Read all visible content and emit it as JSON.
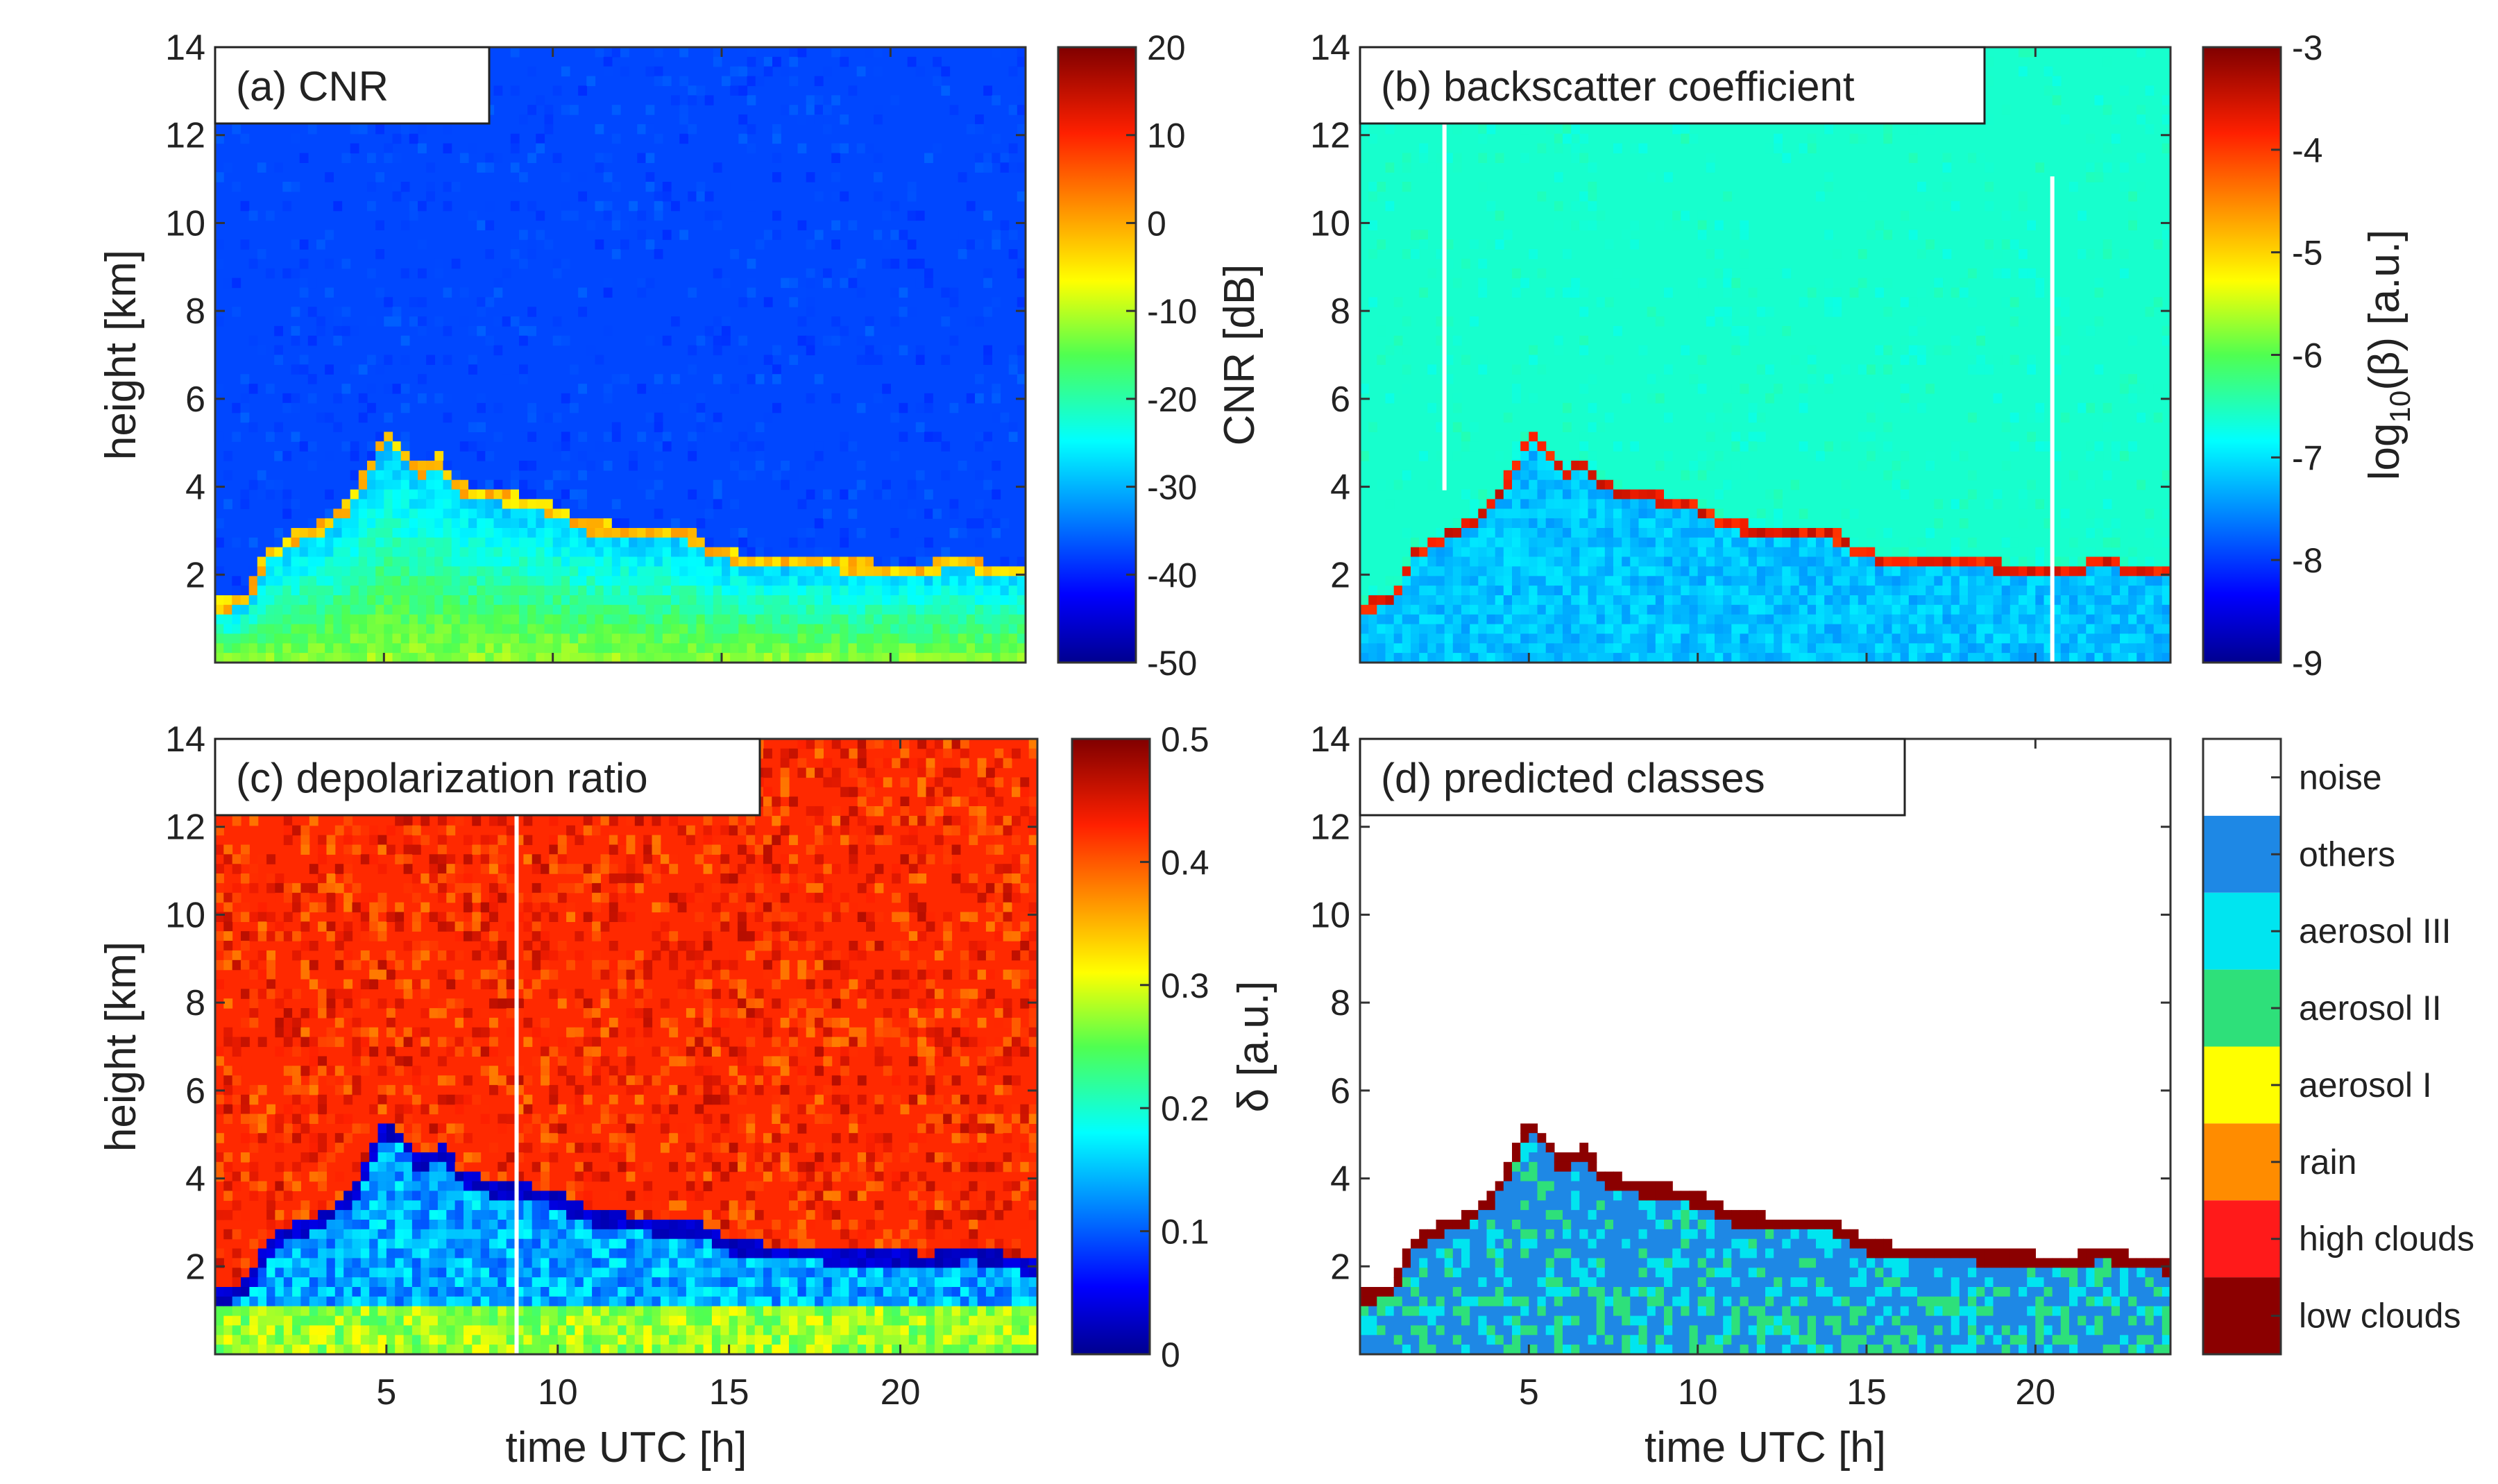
{
  "figure": {
    "panels": [
      {
        "id": "a",
        "title": "(a) CNR",
        "ylabel": "height [km]",
        "xlabel": "",
        "show_xticks": false,
        "colorbar": {
          "label": "CNR [dB]",
          "label_math": false,
          "type": "continuous",
          "ticks": [
            "20",
            "10",
            "0",
            "-10",
            "-20",
            "-30",
            "-40",
            "-50"
          ]
        }
      },
      {
        "id": "b",
        "title": "(b) backscatter coefficient",
        "ylabel": "",
        "xlabel": "",
        "show_xticks": false,
        "colorbar": {
          "label": "log10(β) [a.u.]",
          "label_math": true,
          "label_parts": [
            "log",
            "10",
            "(β) [a.u.]"
          ],
          "type": "continuous",
          "ticks": [
            "-3",
            "-4",
            "-5",
            "-6",
            "-7",
            "-8",
            "-9"
          ]
        }
      },
      {
        "id": "c",
        "title": "(c) depolarization ratio",
        "ylabel": "height [km]",
        "xlabel": "time UTC [h]",
        "show_xticks": true,
        "colorbar": {
          "label": "δ [a.u.]",
          "label_math": false,
          "type": "continuous",
          "ticks": [
            "0.5",
            "0.4",
            "0.3",
            "0.2",
            "0.1",
            "0"
          ]
        }
      },
      {
        "id": "d",
        "title": "(d) predicted classes",
        "ylabel": "",
        "xlabel": "time UTC [h]",
        "show_xticks": true,
        "colorbar": {
          "label": "",
          "type": "categorical",
          "classes": [
            {
              "name": "noise",
              "color": "#ffffff"
            },
            {
              "name": "others",
              "color": "#1e88e5"
            },
            {
              "name": "aerosol III",
              "color": "#00e5f0"
            },
            {
              "name": "aerosol II",
              "color": "#2ee07a"
            },
            {
              "name": "aerosol I",
              "color": "#ffff00"
            },
            {
              "name": "rain",
              "color": "#ff8c00"
            },
            {
              "name": "high clouds",
              "color": "#ff1a1a"
            },
            {
              "name": "low clouds",
              "color": "#8b0000"
            }
          ]
        }
      }
    ]
  },
  "chart_data": [
    {
      "type": "heatmap",
      "title": "(a) CNR",
      "xlabel": "",
      "ylabel": "height [km]",
      "xlim": [
        0,
        24
      ],
      "ylim": [
        0,
        14
      ],
      "yticks": [
        2,
        4,
        6,
        8,
        10,
        12,
        14
      ],
      "colorbar": {
        "label": "CNR [dB]",
        "range": [
          -50,
          20
        ],
        "ticks": [
          20,
          10,
          0,
          -10,
          -20,
          -30,
          -40,
          -50
        ]
      }
    },
    {
      "type": "heatmap",
      "title": "(b) backscatter coefficient",
      "xlabel": "",
      "ylabel": "",
      "xlim": [
        0,
        24
      ],
      "ylim": [
        0,
        14
      ],
      "yticks": [
        2,
        4,
        6,
        8,
        10,
        12,
        14
      ],
      "colorbar": {
        "label": "log10(β) [a.u.]",
        "range": [
          -9,
          -3
        ],
        "ticks": [
          -3,
          -4,
          -5,
          -6,
          -7,
          -8,
          -9
        ]
      }
    },
    {
      "type": "heatmap",
      "title": "(c) depolarization ratio",
      "xlabel": "time UTC [h]",
      "ylabel": "height [km]",
      "xlim": [
        0,
        24
      ],
      "ylim": [
        0,
        14
      ],
      "xticks": [
        5,
        10,
        15,
        20
      ],
      "yticks": [
        2,
        4,
        6,
        8,
        10,
        12,
        14
      ],
      "colorbar": {
        "label": "δ [a.u.]",
        "range": [
          0,
          0.5
        ],
        "ticks": [
          0.5,
          0.4,
          0.3,
          0.2,
          0.1,
          0
        ]
      }
    },
    {
      "type": "heatmap",
      "title": "(d) predicted classes",
      "xlabel": "time UTC [h]",
      "ylabel": "",
      "xlim": [
        0,
        24
      ],
      "ylim": [
        0,
        14
      ],
      "xticks": [
        5,
        10,
        15,
        20
      ],
      "yticks": [
        2,
        4,
        6,
        8,
        10,
        12,
        14
      ],
      "classes": [
        "noise",
        "others",
        "aerosol III",
        "aerosol II",
        "aerosol I",
        "rain",
        "high clouds",
        "low clouds"
      ],
      "cloud_layer_height_km": [
        {
          "t": 0.3,
          "h": 1.3
        },
        {
          "t": 1.0,
          "h": 1.5
        },
        {
          "t": 1.5,
          "h": 2.4
        },
        {
          "t": 2.3,
          "h": 2.8
        },
        {
          "t": 3.2,
          "h": 3.1
        },
        {
          "t": 4.0,
          "h": 3.6
        },
        {
          "t": 4.6,
          "h": 4.5
        },
        {
          "t": 5.0,
          "h": 5.2
        },
        {
          "t": 5.5,
          "h": 4.8
        },
        {
          "t": 6.0,
          "h": 4.3
        },
        {
          "t": 6.6,
          "h": 4.6
        },
        {
          "t": 7.2,
          "h": 4.0
        },
        {
          "t": 8.0,
          "h": 3.8
        },
        {
          "t": 9.0,
          "h": 3.7
        },
        {
          "t": 10.0,
          "h": 3.5
        },
        {
          "t": 11.0,
          "h": 3.1
        },
        {
          "t": 12.0,
          "h": 3.0
        },
        {
          "t": 13.0,
          "h": 2.9
        },
        {
          "t": 14.0,
          "h": 2.9
        },
        {
          "t": 14.6,
          "h": 2.6
        },
        {
          "t": 15.3,
          "h": 2.4
        },
        {
          "t": 16.5,
          "h": 2.3
        },
        {
          "t": 18.0,
          "h": 2.25
        },
        {
          "t": 19.5,
          "h": 2.15
        },
        {
          "t": 21.0,
          "h": 2.1
        },
        {
          "t": 22.0,
          "h": 2.3
        },
        {
          "t": 23.0,
          "h": 2.1
        },
        {
          "t": 24.0,
          "h": 2.0
        }
      ]
    }
  ]
}
